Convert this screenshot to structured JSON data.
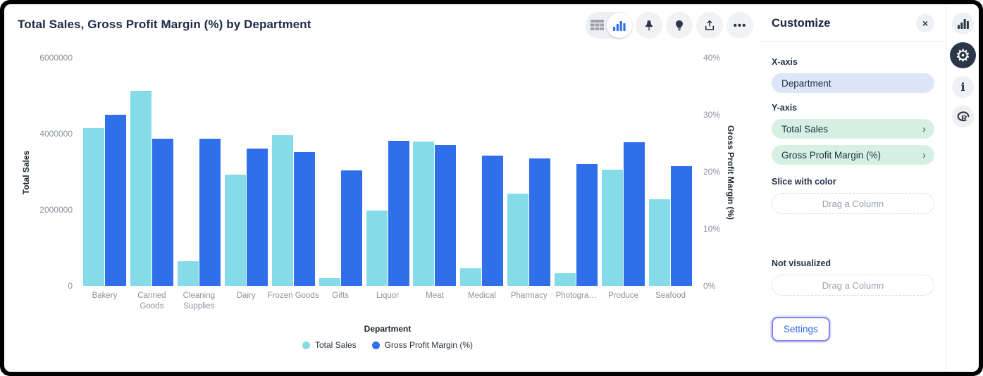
{
  "chart": {
    "title": "Total Sales, Gross Profit Margin (%) by Department"
  },
  "toolbar": {
    "view_toggle": [
      "table-view",
      "chart-view"
    ],
    "buttons": [
      "pin",
      "lightbulb",
      "share",
      "more-options"
    ],
    "more_glyph": "•••"
  },
  "chart_data": {
    "type": "bar",
    "title": "Total Sales, Gross Profit Margin (%) by Department",
    "categories": [
      "Bakery",
      "Canned Goods",
      "Cleaning Supplies",
      "Dairy",
      "Frozen Goods",
      "Gifts",
      "Liquor",
      "Meat",
      "Medical",
      "Pharmacy",
      "Photogra…",
      "Produce",
      "Seafood"
    ],
    "series": [
      {
        "name": "Total Sales",
        "axis": "left",
        "color": "#85dce8",
        "values": [
          4140000,
          5130000,
          650000,
          2920000,
          3970000,
          200000,
          1990000,
          3800000,
          460000,
          2420000,
          330000,
          3060000,
          2270000
        ]
      },
      {
        "name": "Gross Profit Margin (%)",
        "axis": "right",
        "color": "#2f6fea",
        "values": [
          30.0,
          25.8,
          25.8,
          24.1,
          23.5,
          20.2,
          25.4,
          24.7,
          22.9,
          22.4,
          21.3,
          25.2,
          21.0
        ]
      }
    ],
    "left_axis": {
      "label": "Total Sales",
      "ticks": [
        "0",
        "2000000",
        "4000000",
        "6000000"
      ],
      "min": 0,
      "max": 6000000
    },
    "right_axis": {
      "label": "Gross Profit Margin (%)",
      "ticks": [
        "0%",
        "10%",
        "20%",
        "30%",
        "40%"
      ],
      "min": 0,
      "max": 40
    },
    "xlabel": "Department",
    "legend_position": "bottom",
    "grid": false
  },
  "panel": {
    "title": "Customize",
    "close_glyph": "×",
    "chevron_glyph": "›",
    "x_axis_label": "X-axis",
    "x_axis_value": "Department",
    "y_axis_label": "Y-axis",
    "y_axis_values": [
      "Total Sales",
      "Gross Profit Margin (%)"
    ],
    "slice_label": "Slice with color",
    "slice_placeholder": "Drag a Column",
    "not_visualized_label": "Not visualized",
    "not_visualized_placeholder": "Drag a Column",
    "settings_label": "Settings"
  },
  "sidebar": {
    "icons": [
      "chart",
      "settings-gear",
      "info",
      "r-logo"
    ],
    "gear_glyph": "⚙",
    "info_glyph": "i"
  },
  "colors": {
    "total_sales": "#85dce8",
    "gross_profit_margin": "#2f6fea",
    "x_pill": "#dde6f9",
    "y_pill": "#d6f1e3",
    "settings_text": "#2f6bf0",
    "focus_ring": "#8286ec",
    "selected_icon_bg": "#2b3648"
  }
}
